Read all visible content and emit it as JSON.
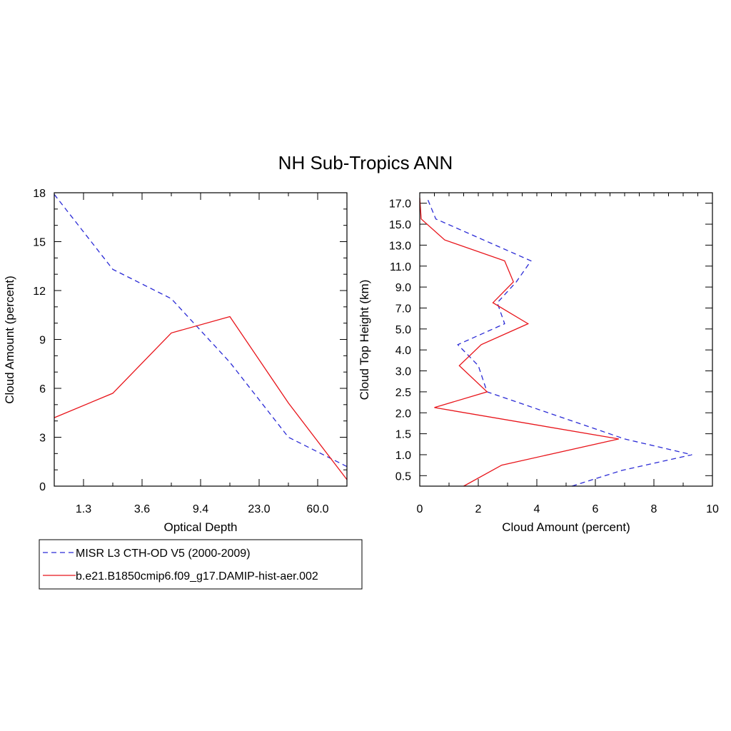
{
  "title": "NH Sub-Tropics ANN",
  "colors": {
    "obs": "#2b2bd6",
    "model": "#e8141a"
  },
  "legend": {
    "entries": [
      {
        "label": "MISR L3 CTH-OD V5 (2000-2009)",
        "color": "#2b2bd6",
        "dash": true
      },
      {
        "label": "b.e21.B1850cmip6.f09_g17.DAMIP-hist-aer.002",
        "color": "#e8141a",
        "dash": false
      }
    ],
    "placement": "below-left"
  },
  "chart_data": [
    {
      "type": "line",
      "title": "",
      "xlabel": "Optical Depth",
      "ylabel": "Cloud Amount (percent)",
      "x": [
        0.15,
        1.3,
        2.45,
        3.6,
        6.5,
        9.4,
        16.2,
        23.0,
        41.5,
        60.0,
        80.0
      ],
      "x_tick_labels": [
        "1.3",
        "3.6",
        "9.4",
        "23.0",
        "60.0"
      ],
      "ylim": [
        0,
        18
      ],
      "y_ticks": [
        0,
        3,
        6,
        9,
        12,
        15,
        18
      ],
      "series": [
        {
          "name": "MISR L3 CTH-OD V5 (2000-2009)",
          "dash": true,
          "values": [
            17.9,
            null,
            13.3,
            null,
            11.5,
            null,
            7.6,
            null,
            3.0,
            null,
            1.2
          ]
        },
        {
          "name": "b.e21.B1850cmip6.f09_g17.DAMIP-hist-aer.002",
          "dash": false,
          "values": [
            4.2,
            null,
            5.7,
            null,
            9.4,
            null,
            10.4,
            null,
            5.1,
            null,
            0.4
          ]
        }
      ]
    },
    {
      "type": "line",
      "title": "",
      "xlabel": "Cloud Amount (percent)",
      "ylabel": "Cloud Top Height (km)",
      "xlim": [
        0,
        10
      ],
      "x_ticks": [
        0,
        2,
        4,
        6,
        8,
        10
      ],
      "y_tick_labels": [
        "0.5",
        "1.0",
        "1.5",
        "2.0",
        "2.5",
        "3.0",
        "4.0",
        "5.0",
        "7.0",
        "9.0",
        "11.0",
        "13.0",
        "15.0",
        "17.0"
      ],
      "heights": [
        "0.25",
        "0.5",
        "0.75",
        "1.0",
        "1.25",
        "1.5",
        "1.75",
        "2.0",
        "2.25",
        "2.5",
        "2.75",
        "3.0",
        "3.5",
        "4.0",
        "4.5",
        "5.0",
        "6.0",
        "7.0",
        "8.0",
        "9.0",
        "10.0",
        "11.0",
        "12.0",
        "13.0",
        "14.0",
        "15.0",
        "16.0",
        "17.0",
        "18.0"
      ],
      "series": [
        {
          "name": "MISR L3 CTH-OD V5 (2000-2009)",
          "dash": true,
          "points": [
            [
              5.2,
              0.0
            ],
            [
              6.9,
              1.5
            ],
            [
              9.3,
              3.0
            ],
            [
              7.0,
              4.5
            ],
            [
              2.3,
              9.0
            ],
            [
              2.0,
              11.5
            ],
            [
              1.3,
              13.5
            ],
            [
              2.9,
              15.5
            ],
            [
              2.65,
              17.5
            ],
            [
              3.3,
              19.5
            ],
            [
              3.8,
              21.5
            ],
            [
              0.55,
              25.5
            ],
            [
              0.25,
              27.5
            ]
          ]
        },
        {
          "name": "b.e21.B1850cmip6.f09_g17.DAMIP-hist-aer.002",
          "dash": false,
          "points": [
            [
              1.5,
              0.0
            ],
            [
              2.8,
              2.0
            ],
            [
              6.8,
              4.5
            ],
            [
              0.5,
              7.5
            ],
            [
              2.3,
              9.0
            ],
            [
              1.35,
              11.5
            ],
            [
              2.1,
              13.5
            ],
            [
              3.7,
              15.5
            ],
            [
              2.5,
              17.5
            ],
            [
              3.2,
              19.5
            ],
            [
              2.9,
              21.5
            ],
            [
              0.85,
              23.5
            ],
            [
              0.05,
              25.5
            ],
            [
              0.0,
              27.5
            ]
          ]
        }
      ]
    }
  ]
}
